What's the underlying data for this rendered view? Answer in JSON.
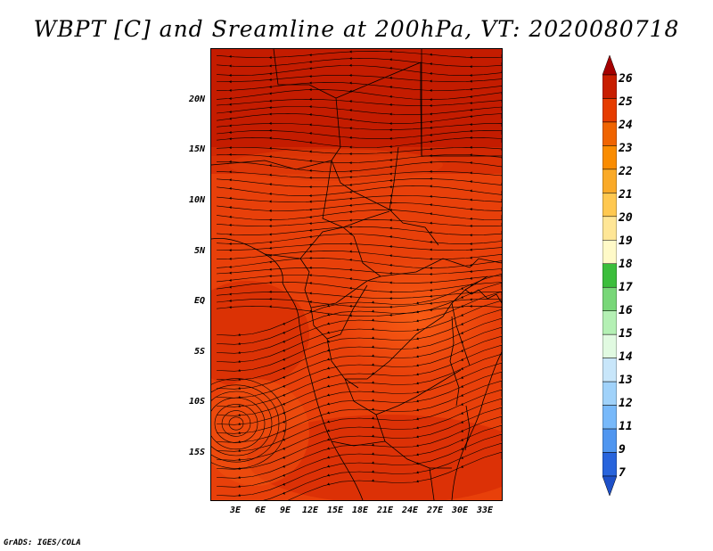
{
  "title": "WBPT [C] and Sreamline at 200hPa, VT: 2020080718",
  "credit": "GrADS: IGES/COLA",
  "map": {
    "lat_labels": [
      "20N",
      "15N",
      "10N",
      "5N",
      "EQ",
      "5S",
      "10S",
      "15S"
    ],
    "lon_labels": [
      "3E",
      "6E",
      "9E",
      "12E",
      "15E",
      "18E",
      "21E",
      "24E",
      "27E",
      "30E",
      "33E"
    ],
    "field_color": "#e8400a",
    "warm_color": "#c81e00",
    "cool_color": "#f45a10"
  },
  "colorbar": {
    "levels": [
      "26",
      "25",
      "24",
      "23",
      "22",
      "21",
      "20",
      "19",
      "18",
      "17",
      "16",
      "15",
      "14",
      "13",
      "12",
      "11",
      "9",
      "7"
    ],
    "colors": [
      "#a50000",
      "#c81e00",
      "#e63c00",
      "#f06400",
      "#fa8c00",
      "#faaa28",
      "#ffc850",
      "#ffe696",
      "#fffac8",
      "#3cbe3c",
      "#78d778",
      "#b4f0b4",
      "#e1fae1",
      "#c8e6fa",
      "#a0d2fa",
      "#78b9fa",
      "#5096f0",
      "#2864dc",
      "#1e50c8"
    ]
  }
}
